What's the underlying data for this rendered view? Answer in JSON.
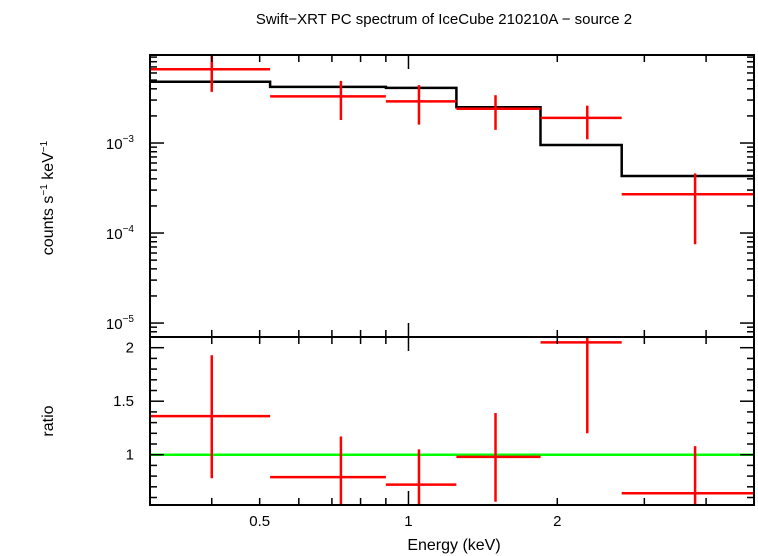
{
  "title": "Swift−XRT PC spectrum of IceCube 210210A − source 2",
  "xlabel": "Energy (keV)",
  "colors": {
    "data": "#ff0000",
    "model": "#000000",
    "unity": "#00ff00",
    "axes": "#000000"
  },
  "chart_data": [
    {
      "type": "scatter",
      "panel": "spectrum",
      "ylabel_base": "counts s",
      "ylabel_exp1": "−1",
      "ylabel_mid": " keV",
      "ylabel_exp2": "−1",
      "xscale": "log",
      "yscale": "log",
      "xlim": [
        0.3,
        5.0
      ],
      "ylim": [
        7e-06,
        0.0095
      ],
      "yticks": [
        {
          "value": 0.001,
          "base": "10",
          "exp": "−3"
        },
        {
          "value": 0.0001,
          "base": "10",
          "exp": "−4"
        },
        {
          "value": 1e-05,
          "base": "10",
          "exp": "−5"
        }
      ],
      "series": [
        {
          "role": "data",
          "points": [
            {
              "x": 0.4,
              "xlo": 0.3,
              "xhi": 0.525,
              "y": 0.0066,
              "ylo": 0.0037,
              "yhi": 0.0093
            },
            {
              "x": 0.73,
              "xlo": 0.525,
              "xhi": 0.9,
              "y": 0.0033,
              "ylo": 0.0018,
              "yhi": 0.0049
            },
            {
              "x": 1.05,
              "xlo": 0.9,
              "xhi": 1.25,
              "y": 0.0029,
              "ylo": 0.0016,
              "yhi": 0.0044
            },
            {
              "x": 1.5,
              "xlo": 1.25,
              "xhi": 1.85,
              "y": 0.0024,
              "ylo": 0.0014,
              "yhi": 0.0034
            },
            {
              "x": 2.3,
              "xlo": 1.85,
              "xhi": 2.7,
              "y": 0.0019,
              "ylo": 0.0011,
              "yhi": 0.0026
            },
            {
              "x": 3.8,
              "xlo": 2.7,
              "xhi": 5.0,
              "y": 0.00027,
              "ylo": 7.5e-05,
              "yhi": 0.00046
            }
          ]
        },
        {
          "role": "model",
          "steps": [
            {
              "xlo": 0.3,
              "xhi": 0.525,
              "y": 0.0048
            },
            {
              "xlo": 0.525,
              "xhi": 0.9,
              "y": 0.0042
            },
            {
              "xlo": 0.9,
              "xhi": 1.25,
              "y": 0.0041
            },
            {
              "xlo": 1.25,
              "xhi": 1.85,
              "y": 0.0025
            },
            {
              "xlo": 1.85,
              "xhi": 2.7,
              "y": 0.00095
            },
            {
              "xlo": 2.7,
              "xhi": 5.0,
              "y": 0.00043
            }
          ]
        }
      ]
    },
    {
      "type": "scatter",
      "panel": "ratio",
      "ylabel": "ratio",
      "xscale": "log",
      "yscale": "linear",
      "xlim": [
        0.3,
        5.0
      ],
      "ylim": [
        0.53,
        2.1
      ],
      "yticks": [
        {
          "value": 1,
          "label": "1"
        },
        {
          "value": 1.5,
          "label": "1.5"
        },
        {
          "value": 2,
          "label": "2"
        }
      ],
      "xticks": [
        {
          "value": 0.5,
          "label": "0.5"
        },
        {
          "value": 1,
          "label": "1"
        },
        {
          "value": 2,
          "label": "2"
        }
      ],
      "unity_line": 1,
      "series": [
        {
          "role": "data",
          "points": [
            {
              "x": 0.4,
              "xlo": 0.3,
              "xhi": 0.525,
              "y": 1.36,
              "ylo": 0.78,
              "yhi": 1.93
            },
            {
              "x": 0.73,
              "xlo": 0.525,
              "xhi": 0.9,
              "y": 0.79,
              "ylo": 0.53,
              "yhi": 1.17
            },
            {
              "x": 1.05,
              "xlo": 0.9,
              "xhi": 1.25,
              "y": 0.72,
              "ylo": 0.53,
              "yhi": 1.05
            },
            {
              "x": 1.5,
              "xlo": 1.25,
              "xhi": 1.85,
              "y": 0.98,
              "ylo": 0.56,
              "yhi": 1.39
            },
            {
              "x": 2.3,
              "xlo": 1.85,
              "xhi": 2.7,
              "y": 2.05,
              "ylo": 1.2,
              "yhi": 2.1
            },
            {
              "x": 3.8,
              "xlo": 2.7,
              "xhi": 5.0,
              "y": 0.64,
              "ylo": 0.53,
              "yhi": 1.08
            }
          ]
        }
      ]
    }
  ]
}
